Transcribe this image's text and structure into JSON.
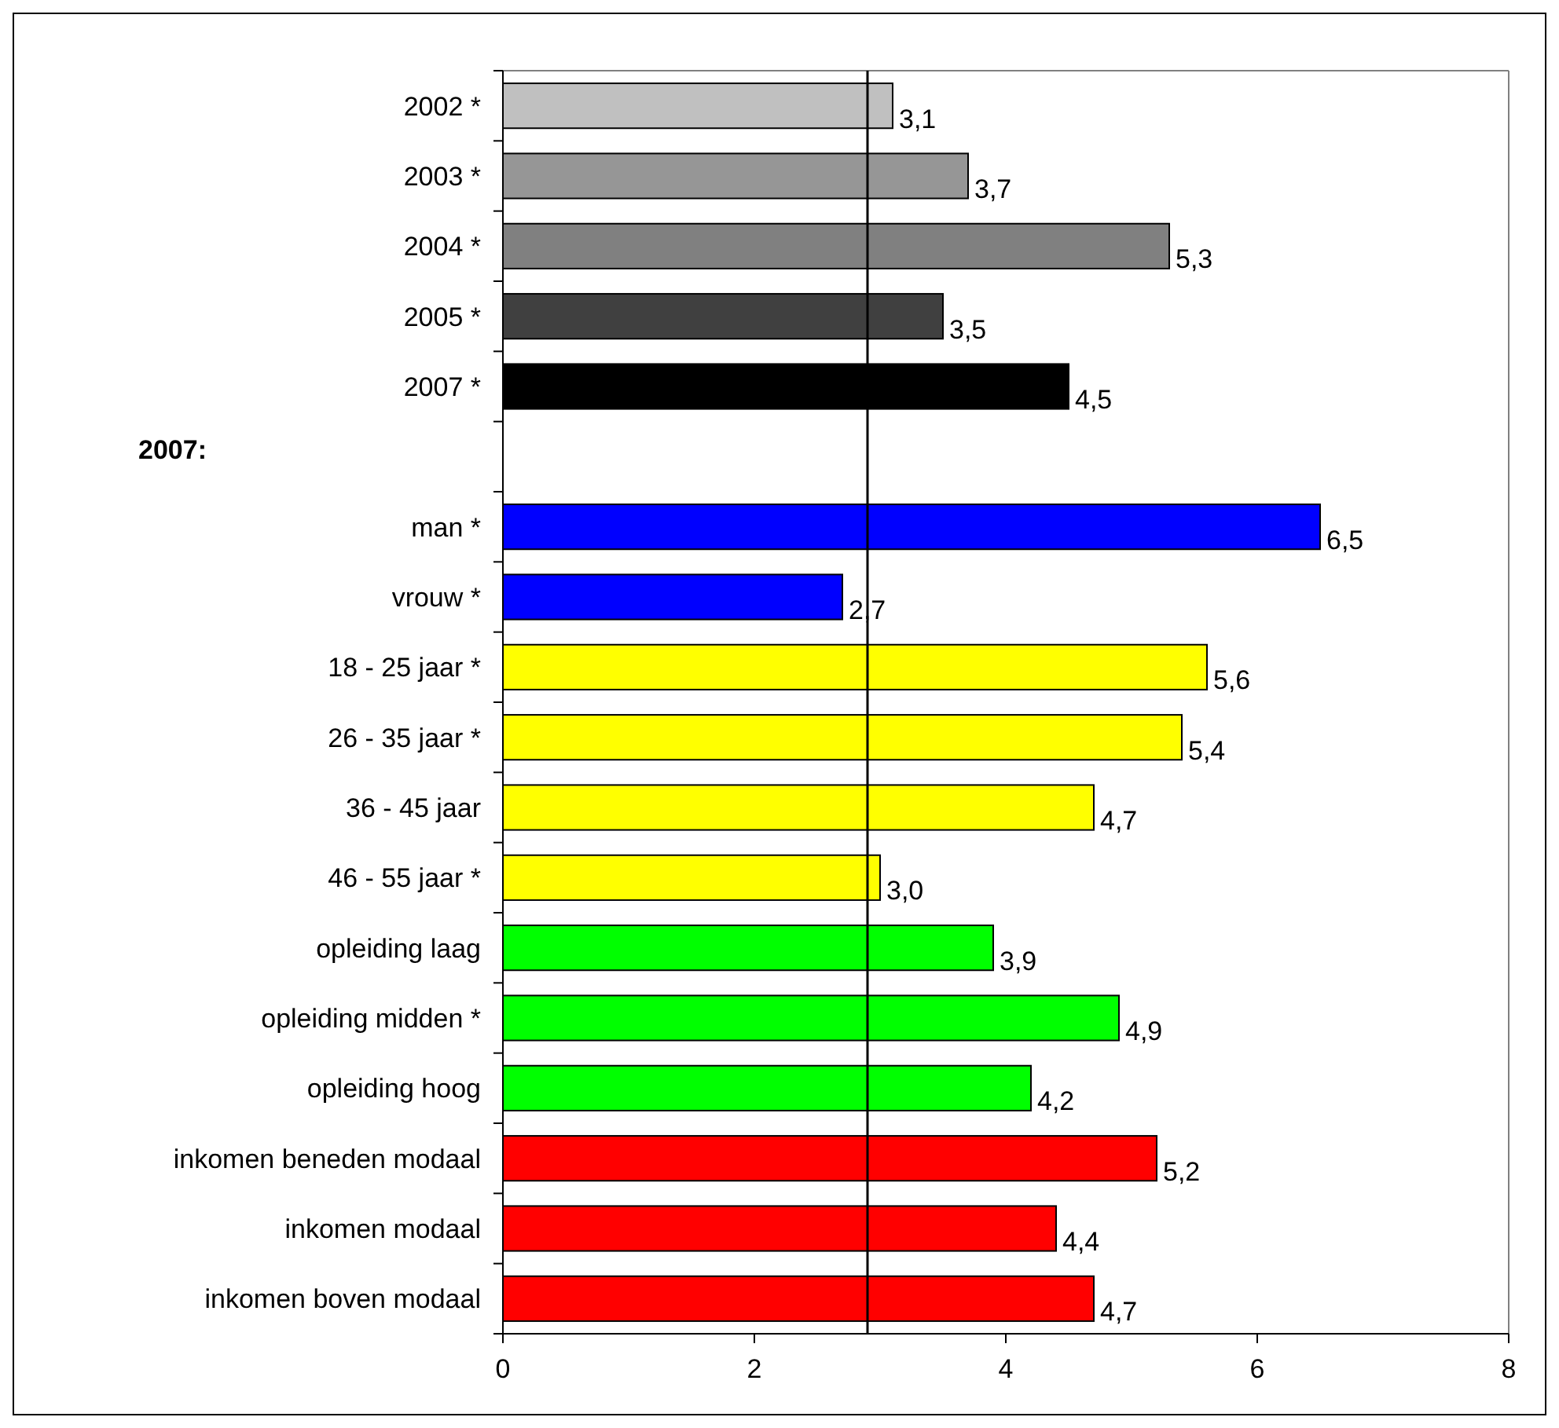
{
  "chart_data": {
    "type": "bar",
    "orientation": "horizontal",
    "categories": [
      "2002 *",
      "2003 *",
      "2004 *",
      "2005 *",
      "2007 *",
      null,
      "man *",
      "vrouw *",
      "18 - 25 jaar *",
      "26 - 35 jaar *",
      "36 - 45 jaar",
      "46 - 55 jaar *",
      "opleiding laag",
      "opleiding midden *",
      "opleiding hoog",
      "inkomen beneden modaal",
      "inkomen modaal",
      "inkomen boven modaal"
    ],
    "values": [
      3.1,
      3.7,
      5.3,
      3.5,
      4.5,
      null,
      6.5,
      2.7,
      5.6,
      5.4,
      4.7,
      3.0,
      3.9,
      4.9,
      4.2,
      5.2,
      4.4,
      4.7
    ],
    "value_labels": [
      "3,1",
      "3,7",
      "5,3",
      "3,5",
      "4,5",
      null,
      "6,5",
      "2,7",
      "5,6",
      "5,4",
      "4,7",
      "3,0",
      "3,9",
      "4,9",
      "4,2",
      "5,2",
      "4,4",
      "4,7"
    ],
    "colors": [
      "#c0c0c0",
      "#969696",
      "#808080",
      "#404040",
      "#000000",
      null,
      "#0000ff",
      "#0000ff",
      "#ffff00",
      "#ffff00",
      "#ffff00",
      "#ffff00",
      "#00ff00",
      "#00ff00",
      "#00ff00",
      "#ff0000",
      "#ff0000",
      "#ff0000"
    ],
    "xlim": [
      0,
      8
    ],
    "xticks": [
      0,
      2,
      4,
      6,
      8
    ],
    "annotations": [
      "2007:"
    ],
    "ref_lines": [
      {
        "axis": "x",
        "value": 2.9,
        "color": "#000000"
      }
    ],
    "grid": false
  }
}
